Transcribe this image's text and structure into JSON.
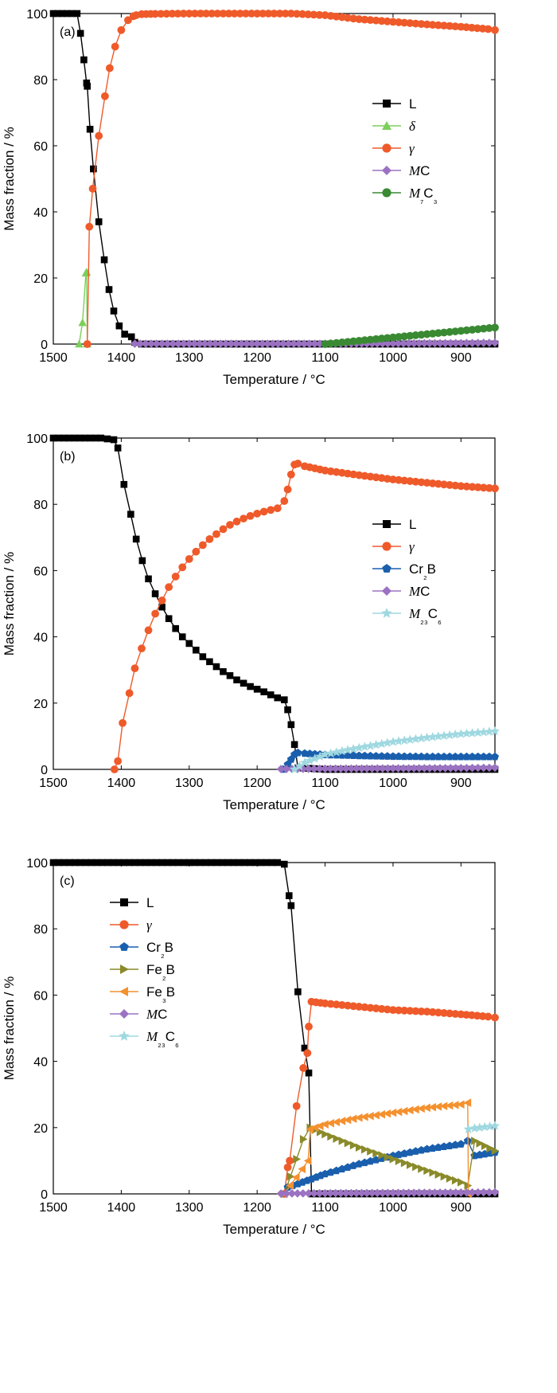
{
  "colors": {
    "L": "#000000",
    "delta": "#7ccf5a",
    "gamma": "#ef5a2a",
    "MC": "#9b72c2",
    "M7C3": "#3a8a33",
    "Cr2B": "#1a5fad",
    "M23C6": "#9fd8e0",
    "Fe2B": "#8a8a2a",
    "Fe3B": "#f4912f"
  },
  "chart_data": [
    {
      "type": "line",
      "panel_label": "(a)",
      "xlabel": "Temperature / °C",
      "ylabel": "Mass fraction / %",
      "xlim": [
        1500,
        850
      ],
      "ylim": [
        0,
        100
      ],
      "xticks": [
        "1500",
        "1400",
        "1300",
        "1200",
        "1100",
        "1000",
        "900"
      ],
      "yticks": [
        "0",
        "20",
        "40",
        "60",
        "80",
        "100"
      ],
      "legend_position": "right",
      "series": [
        {
          "name": "L",
          "key": "L",
          "marker": "square",
          "x": [
            1500,
            1480,
            1465,
            1460,
            1455,
            1451,
            1450,
            1446,
            1441,
            1433,
            1425,
            1418,
            1411,
            1403,
            1395,
            1385,
            1380,
            1370,
            1200,
            1000,
            850
          ],
          "y": [
            100,
            100,
            100,
            94,
            86,
            79,
            78,
            65,
            53,
            37,
            25.5,
            16.5,
            10,
            5.5,
            3,
            2.2,
            0.5,
            0,
            0,
            0,
            0
          ]
        },
        {
          "name": "δ",
          "key": "delta",
          "marker": "triangle",
          "x": [
            1462,
            1457,
            1452,
            1451,
            1450
          ],
          "y": [
            0,
            6.5,
            21.5,
            21.8,
            0
          ]
        },
        {
          "name": "γ",
          "key": "gamma",
          "marker": "circle",
          "x": [
            1450,
            1447,
            1442,
            1433,
            1424,
            1417,
            1409,
            1400,
            1390,
            1382,
            1378,
            1370,
            1350,
            1300,
            1250,
            1200,
            1150,
            1100,
            1050,
            1000,
            950,
            900,
            860,
            850
          ],
          "y": [
            0,
            35.5,
            47,
            63,
            75,
            83.5,
            90,
            95,
            98,
            99.2,
            99.5,
            99.8,
            99.9,
            100,
            100,
            100,
            100,
            99.5,
            98.3,
            97.5,
            96.7,
            96,
            95.3,
            95
          ]
        },
        {
          "name": "MC",
          "key": "MC",
          "marker": "diamond",
          "x": [
            1380,
            1300,
            1200,
            1100,
            1000,
            900,
            850
          ],
          "y": [
            0.1,
            0.1,
            0.1,
            0.1,
            0.2,
            0.3,
            0.4
          ]
        },
        {
          "name": "M₇C₃",
          "key": "M7C3",
          "marker": "circle",
          "x": [
            1100,
            1050,
            1000,
            950,
            900,
            850
          ],
          "y": [
            0,
            1,
            2,
            3,
            4,
            5
          ]
        }
      ]
    },
    {
      "type": "line",
      "panel_label": "(b)",
      "xlabel": "Temperature / °C",
      "ylabel": "Mass fraction / %",
      "xlim": [
        1500,
        850
      ],
      "ylim": [
        0,
        100
      ],
      "xticks": [
        "1500",
        "1400",
        "1300",
        "1200",
        "1100",
        "1000",
        "900"
      ],
      "yticks": [
        "0",
        "20",
        "40",
        "60",
        "80",
        "100"
      ],
      "legend_position": "right",
      "series": [
        {
          "name": "L",
          "key": "L",
          "marker": "square",
          "x": [
            1500,
            1430,
            1411,
            1405,
            1396,
            1386,
            1378,
            1369,
            1360,
            1350,
            1340,
            1330,
            1320,
            1310,
            1300,
            1290,
            1280,
            1270,
            1260,
            1250,
            1240,
            1230,
            1220,
            1210,
            1200,
            1190,
            1180,
            1170,
            1160,
            1155,
            1150,
            1145,
            1140,
            1100,
            1000,
            900,
            850
          ],
          "y": [
            100,
            100,
            99.5,
            97,
            86,
            77,
            69.5,
            63,
            57.5,
            53,
            49,
            45.5,
            42.5,
            40,
            38,
            36,
            34,
            32.5,
            31,
            29.5,
            28.3,
            27,
            26,
            25,
            24.2,
            23.4,
            22.5,
            21.6,
            21,
            18,
            13.5,
            7.5,
            0.5,
            0,
            0,
            0,
            0
          ]
        },
        {
          "name": "γ",
          "key": "gamma",
          "marker": "circle",
          "x": [
            1410,
            1405,
            1398,
            1388,
            1380,
            1370,
            1360,
            1350,
            1340,
            1330,
            1320,
            1310,
            1300,
            1290,
            1280,
            1270,
            1260,
            1250,
            1240,
            1230,
            1220,
            1210,
            1200,
            1190,
            1180,
            1170,
            1160,
            1155,
            1150,
            1145,
            1140,
            1130,
            1100,
            1050,
            1000,
            950,
            900,
            850
          ],
          "y": [
            0,
            2.5,
            14,
            23,
            30.5,
            36.5,
            42,
            47,
            51,
            55,
            58.2,
            61,
            63.5,
            65.7,
            67.7,
            69.5,
            71,
            72.5,
            73.8,
            74.8,
            75.7,
            76.5,
            77.2,
            77.8,
            78.3,
            78.8,
            81,
            84.5,
            89,
            92,
            92.3,
            91.5,
            90.2,
            88.8,
            87.5,
            86.5,
            85.5,
            84.8
          ]
        },
        {
          "name": "Cr₂B",
          "key": "Cr2B",
          "marker": "pentagon",
          "x": [
            1162,
            1155,
            1150,
            1145,
            1140,
            1130,
            1100,
            1050,
            1000,
            950,
            900,
            850
          ],
          "y": [
            0,
            1.5,
            3,
            4.5,
            5,
            4.8,
            4.4,
            4.1,
            3.9,
            3.8,
            3.8,
            3.8
          ]
        },
        {
          "name": "MC",
          "key": "MC",
          "marker": "diamond",
          "x": [
            1165,
            1100,
            1000,
            900,
            850
          ],
          "y": [
            0.1,
            0.2,
            0.3,
            0.4,
            0.5
          ]
        },
        {
          "name": "M₂₃C₆",
          "key": "M23C6",
          "marker": "star",
          "x": [
            1145,
            1130,
            1100,
            1050,
            1000,
            950,
            900,
            850
          ],
          "y": [
            0,
            2,
            4.5,
            6.5,
            8.3,
            9.6,
            10.7,
            11.5
          ]
        }
      ]
    },
    {
      "type": "line",
      "panel_label": "(c)",
      "xlabel": "Temperature / °C",
      "ylabel": "Mass fraction / %",
      "xlim": [
        1500,
        850
      ],
      "ylim": [
        0,
        100
      ],
      "xticks": [
        "1500",
        "1400",
        "1300",
        "1200",
        "1100",
        "1000",
        "900"
      ],
      "yticks": [
        "0",
        "20",
        "40",
        "60",
        "80",
        "100"
      ],
      "legend_position": "top-left",
      "series": [
        {
          "name": "L",
          "key": "L",
          "marker": "square",
          "x": [
            1500,
            1300,
            1170,
            1160,
            1153,
            1150,
            1140,
            1130,
            1124,
            1120,
            1100,
            1000,
            900,
            850
          ],
          "y": [
            100,
            100,
            100,
            99.5,
            90,
            87,
            61,
            44,
            36.5,
            0,
            0,
            0,
            0,
            0
          ]
        },
        {
          "name": "γ",
          "key": "gamma",
          "marker": "circle",
          "x": [
            1160,
            1155,
            1152,
            1142,
            1132,
            1126,
            1124,
            1120,
            1100,
            1050,
            1000,
            950,
            900,
            860,
            850
          ],
          "y": [
            0,
            8,
            10,
            26.5,
            38,
            42.5,
            50.5,
            58,
            57.5,
            56.5,
            55.5,
            55,
            54.2,
            53.5,
            53.2
          ]
        },
        {
          "name": "Cr₂B",
          "key": "Cr2B",
          "marker": "pentagon",
          "x": [
            1155,
            1140,
            1120,
            1100,
            1050,
            1000,
            950,
            900,
            890,
            880,
            850
          ],
          "y": [
            2,
            3,
            4.5,
            6,
            9,
            11.5,
            13.5,
            15,
            16,
            11.5,
            12.5
          ]
        },
        {
          "name": "Fe₂B",
          "key": "Fe2B",
          "marker": "triangle-right",
          "x": [
            1160,
            1142,
            1132,
            1122,
            1100,
            1050,
            1000,
            950,
            900,
            890,
            880,
            850
          ],
          "y": [
            0,
            10.5,
            16.5,
            20,
            18,
            14,
            10.5,
            7,
            3.5,
            2.5,
            16,
            13
          ]
        },
        {
          "name": "Fe₃B",
          "key": "Fe3B",
          "marker": "triangle-left",
          "x": [
            1160,
            1125,
            1122,
            1100,
            1050,
            1000,
            950,
            900,
            890,
            889
          ],
          "y": [
            0,
            10,
            19.5,
            21,
            23,
            24.5,
            26,
            27,
            27.5,
            0
          ]
        },
        {
          "name": "MC",
          "key": "MC",
          "marker": "diamond",
          "x": [
            1165,
            1100,
            1000,
            900,
            850
          ],
          "y": [
            0.1,
            0.2,
            0.3,
            0.4,
            0.5
          ]
        },
        {
          "name": "M₂₃C₆",
          "key": "M23C6",
          "marker": "star",
          "x": [
            889,
            880,
            865,
            850
          ],
          "y": [
            19.5,
            19.8,
            20.2,
            20.5
          ]
        }
      ]
    }
  ]
}
